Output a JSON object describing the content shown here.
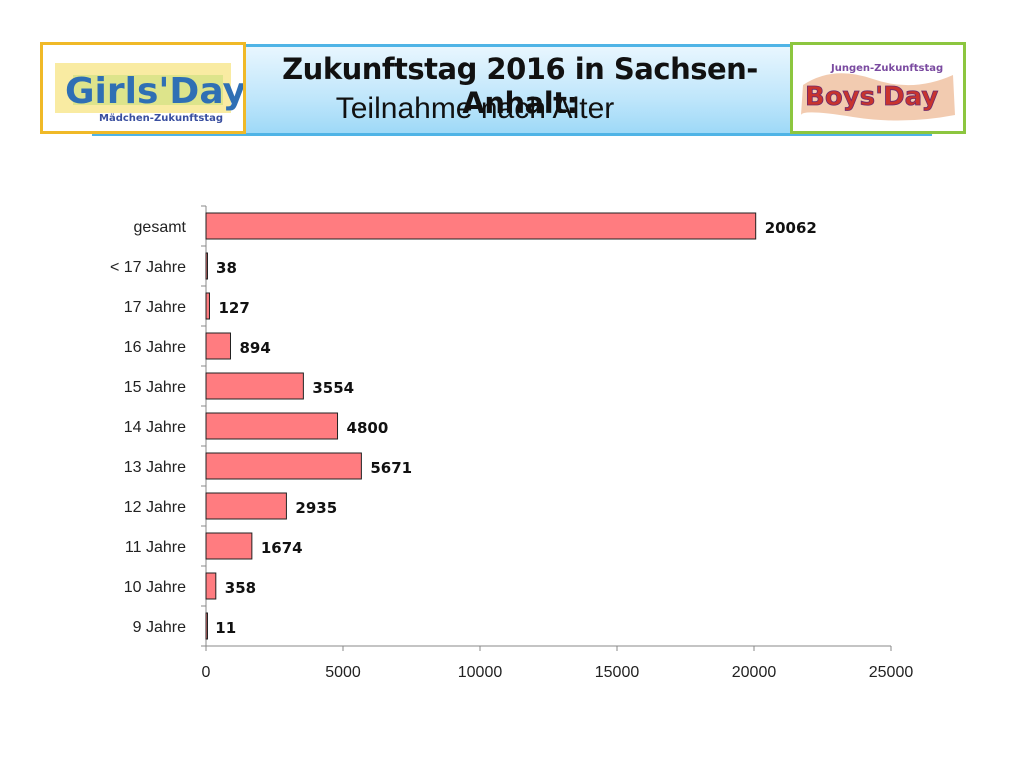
{
  "header": {
    "title": "Zukunftstag 2016 in Sachsen-Anhalt:",
    "subtitle": "Teilnahme nach Alter"
  },
  "logos": {
    "left": {
      "main": "Girls'Day",
      "sub": "Mädchen-Zukunftstag"
    },
    "right": {
      "top": "Jungen-Zukunftstag",
      "main": "Boys'Day"
    }
  },
  "colors": {
    "bar": "#ff7c80",
    "highlight_label": "#e0201b",
    "banner_border": "#4fb4e6"
  },
  "chart_data": {
    "type": "bar",
    "orientation": "horizontal",
    "title": "",
    "categories": [
      "gesamt",
      "< 17 Jahre",
      "17 Jahre",
      "16 Jahre",
      "15 Jahre",
      "14 Jahre",
      "13 Jahre",
      "12 Jahre",
      "11 Jahre",
      "10 Jahre",
      "9 Jahre"
    ],
    "values": [
      20062,
      38,
      127,
      894,
      3554,
      4800,
      5671,
      2935,
      1674,
      358,
      11
    ],
    "highlight_index": 6,
    "xlim": [
      0,
      25000
    ],
    "xticks": [
      0,
      5000,
      10000,
      15000,
      20000,
      25000
    ],
    "xlabel": "",
    "ylabel": "",
    "grid": false
  }
}
